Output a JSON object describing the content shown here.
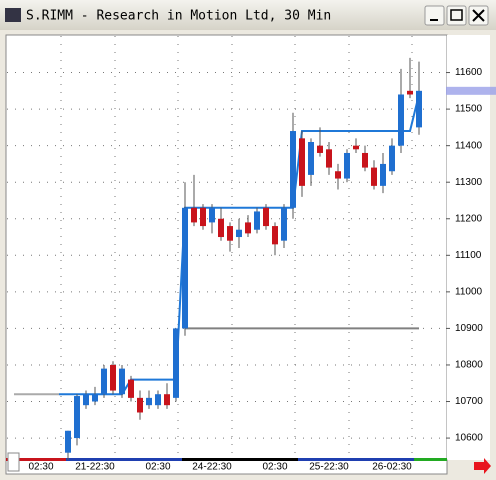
{
  "window_title": "S.RIMM - Research in Motion Ltd, 30 Min",
  "chart_data": {
    "type": "candlestick",
    "ylim": [
      10540,
      11700
    ],
    "yticks": [
      10600,
      10700,
      10800,
      10900,
      11000,
      11100,
      11200,
      11300,
      11400,
      11500,
      11600
    ],
    "grid": true,
    "up_color": "#1f6fd0",
    "down_color": "#c8141c",
    "categories": [
      null,
      null,
      null,
      "02:30",
      null,
      null,
      null,
      null,
      null,
      "21-22:30",
      null,
      null,
      null,
      null,
      null,
      null,
      "02:30",
      null,
      null,
      null,
      null,
      null,
      "24-22:30",
      null,
      null,
      null,
      null,
      null,
      null,
      "02:30",
      null,
      null,
      null,
      null,
      null,
      "25-22:30",
      null,
      null,
      null,
      null,
      null,
      null,
      "26-02:30",
      null,
      null,
      null
    ],
    "candles": [
      null,
      null,
      null,
      null,
      null,
      null,
      {
        "open": 10560,
        "high": 10620,
        "low": 10540,
        "close": 10620
      },
      {
        "open": 10600,
        "high": 10720,
        "low": 10580,
        "close": 10715
      },
      {
        "open": 10690,
        "high": 10730,
        "low": 10680,
        "close": 10720
      },
      {
        "open": 10700,
        "high": 10740,
        "low": 10690,
        "close": 10720
      },
      {
        "open": 10720,
        "high": 10800,
        "low": 10710,
        "close": 10790
      },
      {
        "open": 10800,
        "high": 10810,
        "low": 10720,
        "close": 10730
      },
      {
        "open": 10720,
        "high": 10800,
        "low": 10710,
        "close": 10790
      },
      {
        "open": 10760,
        "high": 10770,
        "low": 10700,
        "close": 10710
      },
      {
        "open": 10710,
        "high": 10730,
        "low": 10650,
        "close": 10670
      },
      {
        "open": 10690,
        "high": 10730,
        "low": 10680,
        "close": 10710
      },
      {
        "open": 10690,
        "high": 10730,
        "low": 10680,
        "close": 10720
      },
      {
        "open": 10720,
        "high": 10750,
        "low": 10680,
        "close": 10690
      },
      {
        "open": 10710,
        "high": 10900,
        "low": 10700,
        "close": 10900
      },
      {
        "open": 10900,
        "high": 11300,
        "low": 10880,
        "close": 11230
      },
      {
        "open": 11230,
        "high": 11320,
        "low": 11180,
        "close": 11190
      },
      {
        "open": 11230,
        "high": 11240,
        "low": 11170,
        "close": 11180
      },
      {
        "open": 11190,
        "high": 11240,
        "low": 11160,
        "close": 11230
      },
      {
        "open": 11200,
        "high": 11230,
        "low": 11140,
        "close": 11150
      },
      {
        "open": 11180,
        "high": 11190,
        "low": 11110,
        "close": 11140
      },
      {
        "open": 11150,
        "high": 11200,
        "low": 11120,
        "close": 11170
      },
      {
        "open": 11190,
        "high": 11210,
        "low": 11150,
        "close": 11160
      },
      {
        "open": 11170,
        "high": 11230,
        "low": 11160,
        "close": 11220
      },
      {
        "open": 11230,
        "high": 11240,
        "low": 11170,
        "close": 11180
      },
      {
        "open": 11180,
        "high": 11190,
        "low": 11100,
        "close": 11130
      },
      {
        "open": 11140,
        "high": 11240,
        "low": 11120,
        "close": 11230
      },
      {
        "open": 11230,
        "high": 11490,
        "low": 11200,
        "close": 11440
      },
      {
        "open": 11420,
        "high": 11440,
        "low": 11260,
        "close": 11290
      },
      {
        "open": 11320,
        "high": 11420,
        "low": 11290,
        "close": 11410
      },
      {
        "open": 11400,
        "high": 11450,
        "low": 11370,
        "close": 11380
      },
      {
        "open": 11390,
        "high": 11410,
        "low": 11320,
        "close": 11340
      },
      {
        "open": 11330,
        "high": 11350,
        "low": 11280,
        "close": 11310
      },
      {
        "open": 11310,
        "high": 11390,
        "low": 11300,
        "close": 11380
      },
      {
        "open": 11400,
        "high": 11420,
        "low": 11380,
        "close": 11390
      },
      {
        "open": 11380,
        "high": 11400,
        "low": 11330,
        "close": 11340
      },
      {
        "open": 11340,
        "high": 11360,
        "low": 11280,
        "close": 11290
      },
      {
        "open": 11290,
        "high": 11380,
        "low": 11270,
        "close": 11350
      },
      {
        "open": 11330,
        "high": 11420,
        "low": 11320,
        "close": 11400
      },
      {
        "open": 11400,
        "high": 11610,
        "low": 11380,
        "close": 11540
      },
      {
        "open": 11550,
        "high": 11640,
        "low": 11530,
        "close": 11540
      },
      {
        "open": 11450,
        "high": 11630,
        "low": 11430,
        "close": 11550
      }
    ],
    "lines": [
      {
        "color": "#aaaaaa",
        "values": [
          10720,
          10720,
          10720,
          10720,
          10720,
          10720,
          null,
          null,
          null,
          null,
          null,
          null,
          null,
          null,
          null,
          null,
          null,
          null,
          null,
          null,
          null,
          null,
          null,
          null,
          null,
          null,
          null,
          null,
          null,
          null,
          null,
          null,
          null,
          null,
          null,
          null,
          null,
          null,
          null,
          null,
          null,
          null,
          null,
          null,
          null,
          null
        ]
      },
      {
        "color": "#808080",
        "values": [
          null,
          null,
          null,
          null,
          null,
          null,
          null,
          null,
          null,
          null,
          null,
          null,
          null,
          null,
          null,
          null,
          null,
          null,
          null,
          10900,
          10900,
          10900,
          10900,
          10900,
          10900,
          10900,
          10900,
          10900,
          10900,
          10900,
          10900,
          10900,
          10900,
          10900,
          10900,
          10900,
          10900,
          10900,
          10900,
          10900,
          10900,
          10900,
          10900,
          10900,
          10900,
          10900
        ]
      },
      {
        "color": "#1f78d8",
        "values": [
          null,
          null,
          null,
          null,
          null,
          10720,
          10720,
          10720,
          10720,
          10720,
          10720,
          10720,
          10720,
          10760,
          10760,
          10760,
          10760,
          10760,
          10760,
          11230,
          11230,
          11230,
          11230,
          11230,
          11230,
          11230,
          11230,
          11230,
          11230,
          11230,
          11230,
          11230,
          11440,
          11440,
          11440,
          11440,
          11440,
          11440,
          11440,
          11440,
          11440,
          11440,
          11440,
          11440,
          11440,
          11540
        ]
      }
    ]
  }
}
